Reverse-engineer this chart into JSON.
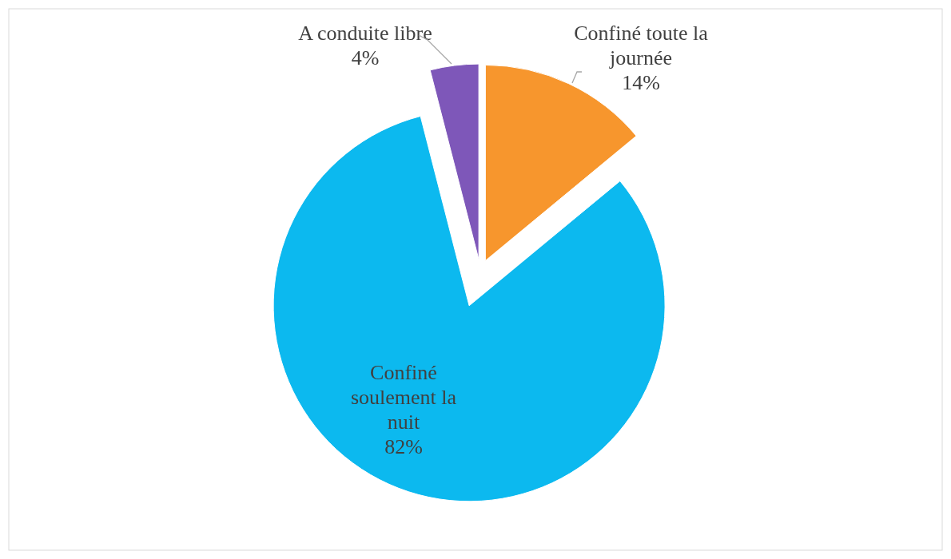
{
  "chart_data": {
    "type": "pie",
    "categories": [
      "Confiné toute la journée",
      "Confiné soulement la nuit",
      "A conduite libre"
    ],
    "values": [
      14,
      82,
      4
    ],
    "colors": [
      "#f7962d",
      "#0cb9ef",
      "#7e57b9"
    ],
    "value_labels": [
      "14%",
      "82%",
      "4%"
    ],
    "legend": false
  }
}
